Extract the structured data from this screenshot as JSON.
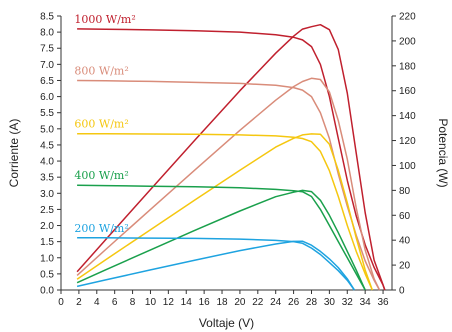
{
  "chart_data": {
    "type": "line",
    "xlabel": "Voltaje (V)",
    "ylabel_left": "Corriente (A)",
    "ylabel_right": "Potencia (W)",
    "xlim": [
      0,
      37
    ],
    "ylim_left": [
      0,
      8.5
    ],
    "ylim_right": [
      0,
      220
    ],
    "x_ticks": [
      "0",
      "2",
      "4",
      "6",
      "8",
      "10",
      "12",
      "14",
      "16",
      "18",
      "20",
      "22",
      "24",
      "26",
      "28",
      "30",
      "32",
      "34",
      "36"
    ],
    "y_left_ticks": [
      "0.0",
      "0.5",
      "1.0",
      "1.5",
      "2.0",
      "2.5",
      "3.0",
      "3.5",
      "4.0",
      "4.5",
      "5.0",
      "5.5",
      "6.0",
      "6.5",
      "7.0",
      "7.5",
      "8.0",
      "8.5"
    ],
    "y_right_ticks": [
      "0",
      "20",
      "40",
      "60",
      "80",
      "100",
      "120",
      "140",
      "160",
      "180",
      "200",
      "220"
    ],
    "series": [
      {
        "name": "1000 W/m²",
        "color": "#c0202e",
        "current": [
          [
            1.8,
            8.1
          ],
          [
            5,
            8.09
          ],
          [
            10,
            8.07
          ],
          [
            15,
            8.04
          ],
          [
            20,
            8.0
          ],
          [
            24,
            7.92
          ],
          [
            26,
            7.84
          ],
          [
            27,
            7.76
          ],
          [
            28,
            7.55
          ],
          [
            29,
            7.0
          ],
          [
            30,
            6.0
          ],
          [
            31,
            4.7
          ],
          [
            32,
            3.4
          ],
          [
            33,
            2.3
          ],
          [
            34,
            1.4
          ],
          [
            35,
            0.7
          ],
          [
            36,
            0.15
          ],
          [
            36.2,
            0.0
          ]
        ],
        "power": [
          [
            1.8,
            14.6
          ],
          [
            5,
            40.5
          ],
          [
            10,
            80.7
          ],
          [
            15,
            120.6
          ],
          [
            20,
            160.0
          ],
          [
            24,
            190.1
          ],
          [
            26,
            203.8
          ],
          [
            27,
            209.5
          ],
          [
            28,
            211.4
          ],
          [
            29,
            213
          ],
          [
            30,
            209
          ],
          [
            31,
            193
          ],
          [
            32,
            158
          ],
          [
            33,
            110
          ],
          [
            34,
            62
          ],
          [
            35,
            24
          ],
          [
            36,
            4
          ],
          [
            36.2,
            0
          ]
        ]
      },
      {
        "name": "800 W/m²",
        "color": "#d98c7a",
        "current": [
          [
            1.8,
            6.5
          ],
          [
            5,
            6.49
          ],
          [
            10,
            6.47
          ],
          [
            15,
            6.44
          ],
          [
            20,
            6.41
          ],
          [
            24,
            6.35
          ],
          [
            26,
            6.28
          ],
          [
            27,
            6.2
          ],
          [
            28,
            6.0
          ],
          [
            29,
            5.5
          ],
          [
            30,
            4.7
          ],
          [
            31,
            3.6
          ],
          [
            32,
            2.6
          ],
          [
            33,
            1.7
          ],
          [
            34,
            0.9
          ],
          [
            35,
            0.3
          ],
          [
            35.6,
            0.0
          ]
        ],
        "power": [
          [
            1.8,
            11.7
          ],
          [
            5,
            32.5
          ],
          [
            10,
            64.7
          ],
          [
            15,
            96.6
          ],
          [
            20,
            128.2
          ],
          [
            24,
            152.4
          ],
          [
            26,
            163.3
          ],
          [
            27,
            167.4
          ],
          [
            28,
            170
          ],
          [
            29,
            169
          ],
          [
            30,
            159
          ],
          [
            31,
            136
          ],
          [
            32,
            105
          ],
          [
            33,
            66
          ],
          [
            34,
            32
          ],
          [
            35,
            9
          ],
          [
            35.6,
            0
          ]
        ]
      },
      {
        "name": "600 W/m²",
        "color": "#f5c710",
        "current": [
          [
            1.8,
            4.85
          ],
          [
            5,
            4.85
          ],
          [
            10,
            4.84
          ],
          [
            15,
            4.83
          ],
          [
            20,
            4.81
          ],
          [
            24,
            4.78
          ],
          [
            26,
            4.74
          ],
          [
            27,
            4.7
          ],
          [
            28,
            4.6
          ],
          [
            29,
            4.3
          ],
          [
            30,
            3.7
          ],
          [
            31,
            2.9
          ],
          [
            32,
            2.0
          ],
          [
            33,
            1.2
          ],
          [
            34,
            0.5
          ],
          [
            34.8,
            0.0
          ]
        ],
        "power": [
          [
            1.8,
            8.7
          ],
          [
            5,
            24.3
          ],
          [
            10,
            48.4
          ],
          [
            15,
            72.5
          ],
          [
            20,
            96.2
          ],
          [
            24,
            114.7
          ],
          [
            26,
            121.8
          ],
          [
            27,
            124.5
          ],
          [
            28,
            125.3
          ],
          [
            29,
            125
          ],
          [
            30,
            117
          ],
          [
            31,
            96
          ],
          [
            32,
            70
          ],
          [
            33,
            42
          ],
          [
            34,
            16
          ],
          [
            34.8,
            0
          ]
        ]
      },
      {
        "name": "400 W/m²",
        "color": "#1aa04c",
        "current": [
          [
            1.8,
            3.25
          ],
          [
            5,
            3.24
          ],
          [
            10,
            3.22
          ],
          [
            15,
            3.2
          ],
          [
            20,
            3.17
          ],
          [
            24,
            3.12
          ],
          [
            26,
            3.08
          ],
          [
            27,
            3.05
          ],
          [
            28,
            2.9
          ],
          [
            29,
            2.5
          ],
          [
            30,
            2.0
          ],
          [
            31,
            1.5
          ],
          [
            32,
            1.0
          ],
          [
            33,
            0.5
          ],
          [
            34,
            0.0
          ]
        ],
        "power": [
          [
            1.8,
            5.9
          ],
          [
            5,
            16.2
          ],
          [
            10,
            32.2
          ],
          [
            15,
            48.0
          ],
          [
            20,
            63.4
          ],
          [
            24,
            74.9
          ],
          [
            26,
            78.5
          ],
          [
            27,
            80
          ],
          [
            28,
            79
          ],
          [
            29,
            72
          ],
          [
            30,
            60
          ],
          [
            31,
            46
          ],
          [
            32,
            31
          ],
          [
            33,
            16
          ],
          [
            34,
            0
          ]
        ]
      },
      {
        "name": "200 W/m²",
        "color": "#1ea3e0",
        "current": [
          [
            1.8,
            1.62
          ],
          [
            5,
            1.62
          ],
          [
            10,
            1.61
          ],
          [
            15,
            1.6
          ],
          [
            20,
            1.58
          ],
          [
            24,
            1.54
          ],
          [
            26,
            1.5
          ],
          [
            27,
            1.45
          ],
          [
            28,
            1.3
          ],
          [
            29,
            1.1
          ],
          [
            30,
            0.85
          ],
          [
            31,
            0.6
          ],
          [
            32,
            0.3
          ],
          [
            32.8,
            0.0
          ]
        ],
        "power": [
          [
            1.8,
            2.9
          ],
          [
            5,
            8.1
          ],
          [
            10,
            16.1
          ],
          [
            15,
            24.0
          ],
          [
            20,
            31.6
          ],
          [
            24,
            36.9
          ],
          [
            26,
            39.0
          ],
          [
            27,
            39.2
          ],
          [
            28,
            36
          ],
          [
            29,
            31
          ],
          [
            30,
            25
          ],
          [
            31,
            18
          ],
          [
            32,
            9
          ],
          [
            32.8,
            0
          ]
        ]
      }
    ]
  }
}
